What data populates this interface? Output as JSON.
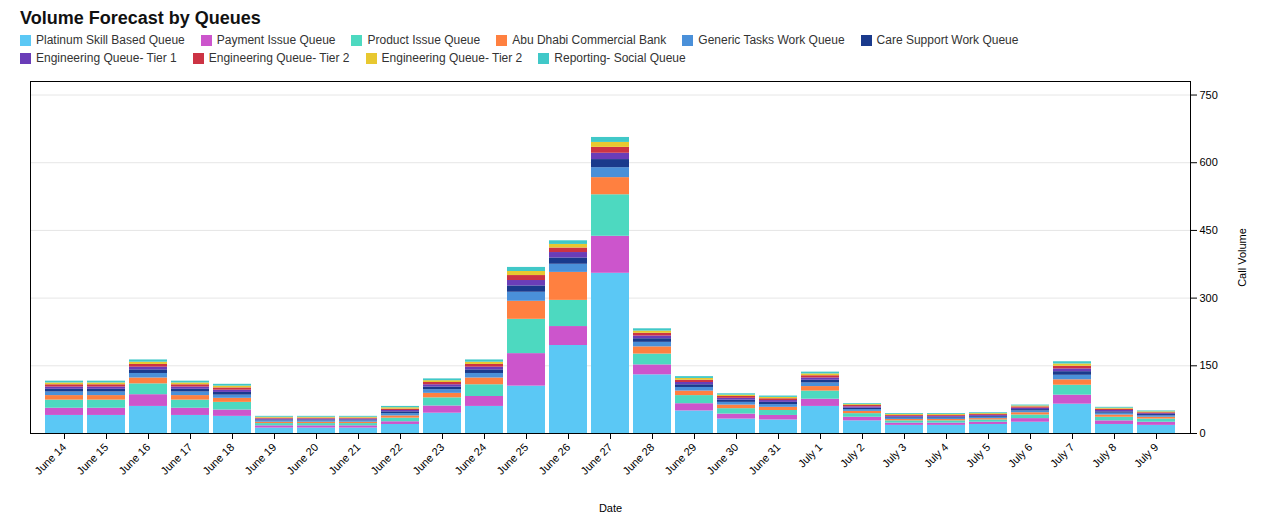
{
  "chart_data": {
    "type": "bar",
    "title": "Volume Forecast by Queues",
    "xlabel": "Date",
    "ylabel": "Call Volume",
    "stacked": true,
    "grid": true,
    "legend": "top",
    "ylim": [
      0,
      780
    ],
    "yticks": [
      0,
      150,
      300,
      450,
      600,
      750
    ],
    "categories": [
      "June 14",
      "June 15",
      "June 16",
      "June 17",
      "June 18",
      "June 19",
      "June 20",
      "June 21",
      "June 22",
      "June 23",
      "June 24",
      "June 25",
      "June 26",
      "June 27",
      "June 28",
      "June 29",
      "June 30",
      "June 31",
      "July 1",
      "July 2",
      "July 3",
      "July 4",
      "July 5",
      "July 6",
      "July 7",
      "July 8",
      "July 9"
    ],
    "series": [
      {
        "name": "Platinum Skill Based Queue",
        "color": "#5BC8F5",
        "values": [
          40,
          40,
          60,
          40,
          38,
          12,
          12,
          12,
          20,
          45,
          60,
          105,
          195,
          355,
          130,
          50,
          32,
          30,
          60,
          28,
          18,
          18,
          20,
          25,
          65,
          20,
          18
        ]
      },
      {
        "name": "Payment Issue Queue",
        "color": "#CC55CC",
        "values": [
          16,
          16,
          26,
          16,
          14,
          5,
          5,
          5,
          6,
          16,
          22,
          72,
          42,
          82,
          22,
          16,
          11,
          10,
          16,
          8,
          5,
          5,
          5,
          8,
          20,
          8,
          7
        ]
      },
      {
        "name": "Product Issue Queue",
        "color": "#4DD9C0",
        "values": [
          18,
          18,
          24,
          18,
          17,
          5,
          5,
          5,
          8,
          18,
          26,
          76,
          58,
          92,
          24,
          18,
          12,
          11,
          18,
          8,
          5,
          5,
          5,
          8,
          22,
          8,
          7
        ]
      },
      {
        "name": "Abu Dhabi Commercial Bank",
        "color": "#FF8040",
        "values": [
          10,
          10,
          13,
          10,
          9,
          3,
          3,
          3,
          5,
          10,
          15,
          40,
          62,
          38,
          16,
          10,
          8,
          7,
          10,
          5,
          3,
          3,
          3,
          5,
          12,
          5,
          4
        ]
      },
      {
        "name": "Generic Tasks Work Queue",
        "color": "#4A90D9",
        "values": [
          8,
          8,
          10,
          8,
          7,
          3,
          3,
          3,
          5,
          8,
          10,
          20,
          18,
          22,
          10,
          8,
          6,
          6,
          8,
          4,
          3,
          3,
          3,
          4,
          10,
          4,
          3
        ]
      },
      {
        "name": "Care Support Work Queue",
        "color": "#1A3A8C",
        "values": [
          6,
          6,
          8,
          6,
          6,
          2,
          2,
          2,
          4,
          6,
          8,
          14,
          14,
          18,
          8,
          6,
          5,
          5,
          6,
          3,
          2,
          2,
          2,
          3,
          8,
          3,
          3
        ]
      },
      {
        "name": "Engineering Queue- Tier 1",
        "color": "#6A3DB8",
        "values": [
          5,
          5,
          6,
          5,
          5,
          2,
          2,
          2,
          3,
          5,
          6,
          12,
          12,
          14,
          6,
          5,
          4,
          4,
          5,
          3,
          2,
          2,
          2,
          3,
          6,
          3,
          2
        ]
      },
      {
        "name": "Engineering Queue- Tier 2",
        "color": "#CC3344",
        "values": [
          5,
          5,
          6,
          5,
          5,
          2,
          2,
          2,
          3,
          5,
          6,
          11,
          10,
          13,
          6,
          5,
          4,
          4,
          5,
          3,
          2,
          2,
          2,
          3,
          6,
          3,
          2
        ]
      },
      {
        "name": "Engineering Queue- Tier 2",
        "color": "#E8C830",
        "values": [
          4,
          4,
          5,
          4,
          4,
          2,
          2,
          2,
          3,
          4,
          5,
          9,
          8,
          11,
          5,
          4,
          3,
          3,
          4,
          2,
          2,
          2,
          2,
          2,
          5,
          2,
          2
        ]
      },
      {
        "name": "Reporting- Social Queue",
        "color": "#40C8C8",
        "values": [
          4,
          4,
          5,
          4,
          4,
          2,
          2,
          2,
          3,
          4,
          5,
          9,
          8,
          11,
          5,
          4,
          3,
          3,
          4,
          2,
          2,
          2,
          2,
          2,
          5,
          2,
          2
        ]
      }
    ]
  }
}
